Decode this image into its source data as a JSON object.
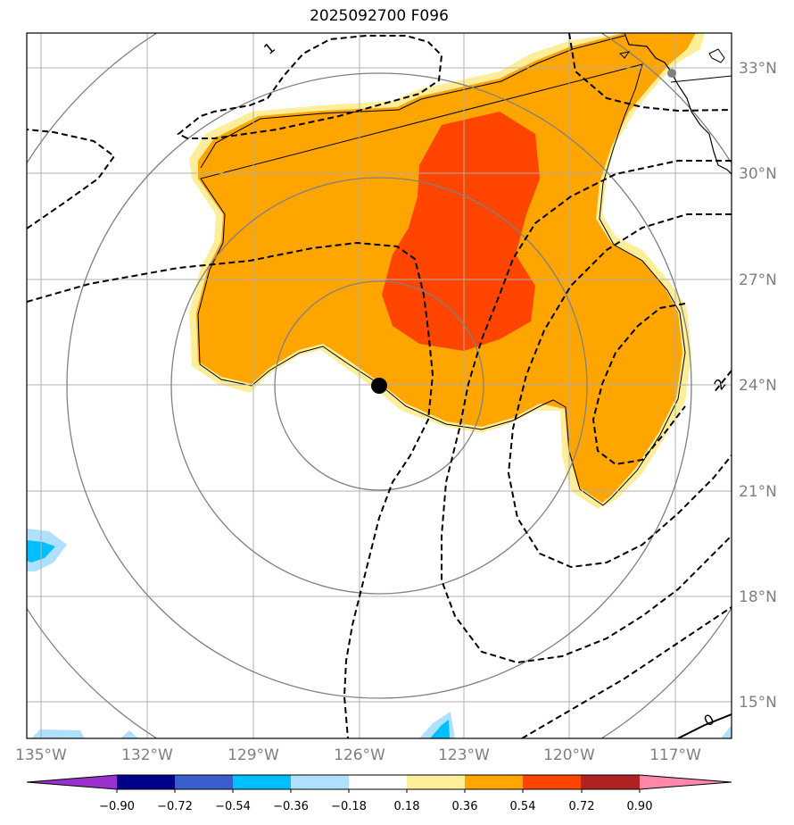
{
  "title": "2025092700 F096",
  "map": {
    "lat_labels": [
      "33°N",
      "30°N",
      "27°N",
      "24°N",
      "21°N",
      "18°N",
      "15°N"
    ],
    "lon_labels": [
      "135°W",
      "132°W",
      "129°W",
      "126°W",
      "123°W",
      "120°W",
      "117°W"
    ],
    "contour_labels": [
      "1",
      "2",
      "0"
    ],
    "storm_center": {
      "lon": "125.6°W",
      "lat": "24.0°N"
    },
    "colors": {
      "orange": "#ffa500",
      "red_orange": "#ff4500",
      "light_yellow": "#ffee99",
      "sky_blue": "#00bfff",
      "light_blue": "#b0e0ff",
      "grid": "#b0b0b0",
      "range_ring": "#808080"
    }
  },
  "colorbar": {
    "labels": [
      "−0.90",
      "−0.72",
      "−0.54",
      "−0.36",
      "−0.18",
      "0.18",
      "0.36",
      "0.54",
      "0.72",
      "0.90"
    ],
    "colors": [
      "#9932cc",
      "#00008b",
      "#3a5fcd",
      "#00bfff",
      "#b0e0ff",
      "#ffffff",
      "#ffee99",
      "#ffa500",
      "#ff4500",
      "#b22222",
      "#ff88aa"
    ]
  }
}
